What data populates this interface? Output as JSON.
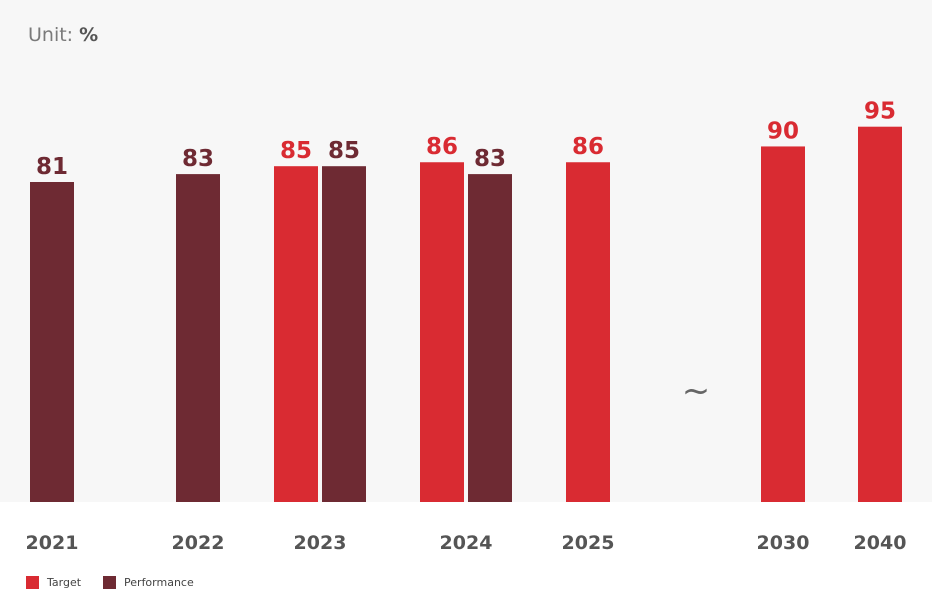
{
  "unit": {
    "prefix": "Unit:",
    "value": "%"
  },
  "break_symbol": "~",
  "colors": {
    "target": "#d92b32",
    "performance": "#6e2a33"
  },
  "chart_data": {
    "type": "bar",
    "categories": [
      "2021",
      "2022",
      "2023",
      "2024",
      "2025",
      "2030",
      "2040"
    ],
    "series": [
      {
        "name": "Target",
        "values": [
          null,
          null,
          85,
          86,
          86,
          90,
          95
        ]
      },
      {
        "name": "Performance",
        "values": [
          81,
          83,
          85,
          83,
          null,
          null,
          null
        ]
      }
    ],
    "legend": {
      "position": "bottom-left",
      "items": [
        "Target",
        "Performance"
      ]
    },
    "grid": false,
    "axis_break_between": [
      "2025",
      "2030"
    ]
  }
}
